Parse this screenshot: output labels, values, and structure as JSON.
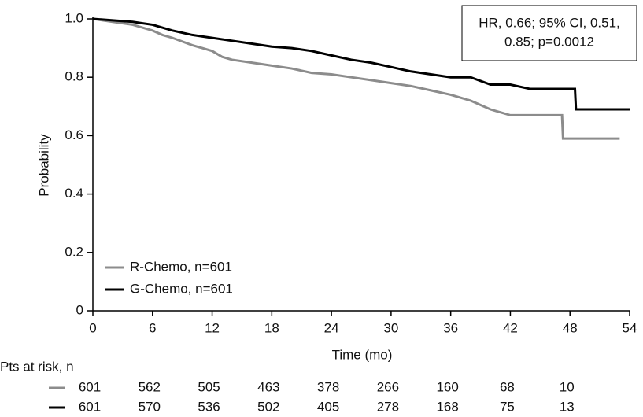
{
  "chart_data": {
    "type": "line",
    "x_label": "Time (mo)",
    "y_label": "Probability",
    "xlim": [
      0,
      54
    ],
    "ylim": [
      0,
      1
    ],
    "xticks": [
      0,
      6,
      12,
      18,
      24,
      30,
      36,
      42,
      48,
      54
    ],
    "yticks": [
      0,
      0.2,
      0.4,
      0.6,
      0.8,
      {
        "value": 1,
        "label": "1.0"
      }
    ],
    "legend": "lower left",
    "annotation": [
      "HR, 0.66; 95% CI, 0.51,",
      "0.85; p=0.0012"
    ],
    "series": [
      {
        "name": "R-Chemo, n=601",
        "color": "#8c8c8c",
        "x": [
          0,
          2,
          4,
          6,
          7,
          8,
          10,
          12,
          13,
          14,
          16,
          18,
          20,
          22,
          24,
          26,
          28,
          30,
          32,
          34,
          36,
          38,
          40,
          42,
          44,
          47.2,
          47.3,
          50,
          53
        ],
        "values": [
          1.0,
          0.99,
          0.98,
          0.96,
          0.945,
          0.935,
          0.91,
          0.89,
          0.87,
          0.86,
          0.85,
          0.84,
          0.83,
          0.815,
          0.81,
          0.8,
          0.79,
          0.78,
          0.77,
          0.755,
          0.74,
          0.72,
          0.69,
          0.67,
          0.67,
          0.67,
          0.59,
          0.59,
          0.59
        ]
      },
      {
        "name": "G-Chemo, n=601",
        "color": "#000000",
        "x": [
          0,
          4,
          6,
          8,
          10,
          12,
          14,
          16,
          18,
          20,
          22,
          24,
          26,
          28,
          30,
          32,
          34,
          36,
          38,
          40,
          42,
          44,
          46,
          48.5,
          48.6,
          51,
          54
        ],
        "values": [
          1.0,
          0.99,
          0.98,
          0.96,
          0.945,
          0.935,
          0.925,
          0.915,
          0.905,
          0.9,
          0.89,
          0.875,
          0.86,
          0.85,
          0.835,
          0.82,
          0.81,
          0.8,
          0.8,
          0.775,
          0.775,
          0.76,
          0.76,
          0.76,
          0.69,
          0.69,
          0.69
        ]
      }
    ],
    "at_risk": {
      "title": "Pts at risk, n",
      "rows": [
        {
          "series": 0,
          "values": [
            601,
            562,
            505,
            463,
            378,
            266,
            160,
            68,
            10
          ]
        },
        {
          "series": 1,
          "values": [
            601,
            570,
            536,
            502,
            405,
            278,
            168,
            75,
            13
          ]
        }
      ]
    }
  }
}
